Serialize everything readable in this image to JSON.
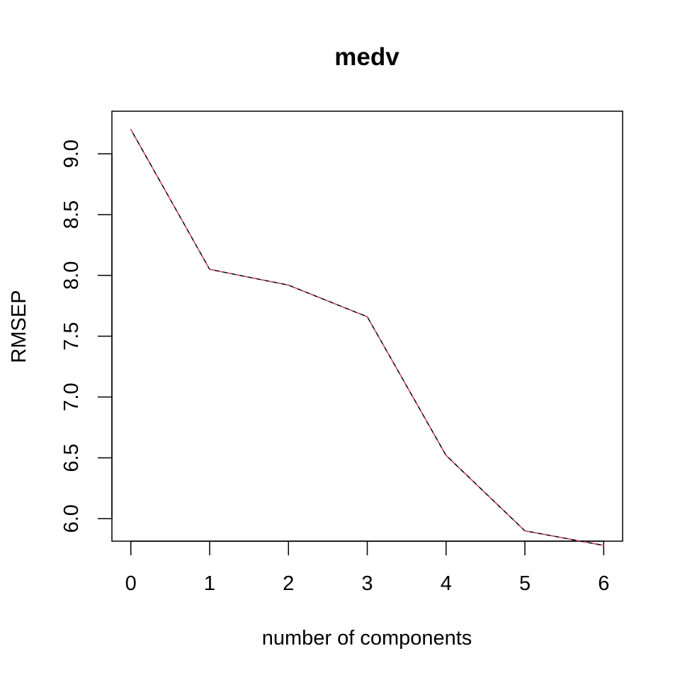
{
  "chart_data": {
    "type": "line",
    "title": "medv",
    "xlabel": "number of components",
    "ylabel": "RMSEP",
    "x": [
      0,
      1,
      2,
      3,
      4,
      5,
      6
    ],
    "xticks": [
      "0",
      "1",
      "2",
      "3",
      "4",
      "5",
      "6"
    ],
    "yticks": [
      "6.0",
      "6.5",
      "7.0",
      "7.5",
      "8.0",
      "8.5",
      "9.0"
    ],
    "xlim": [
      -0.24,
      6.24
    ],
    "ylim": [
      5.815,
      9.35
    ],
    "grid": false,
    "legend": "none",
    "series": [
      {
        "values": [
          9.2,
          8.05,
          7.92,
          7.66,
          6.52,
          5.9,
          5.78
        ],
        "color": "#000000",
        "style": "solid"
      },
      {
        "values": [
          9.2,
          8.05,
          7.92,
          7.66,
          6.52,
          5.9,
          5.78
        ],
        "color": "#DF536B",
        "style": "dashed"
      }
    ]
  }
}
